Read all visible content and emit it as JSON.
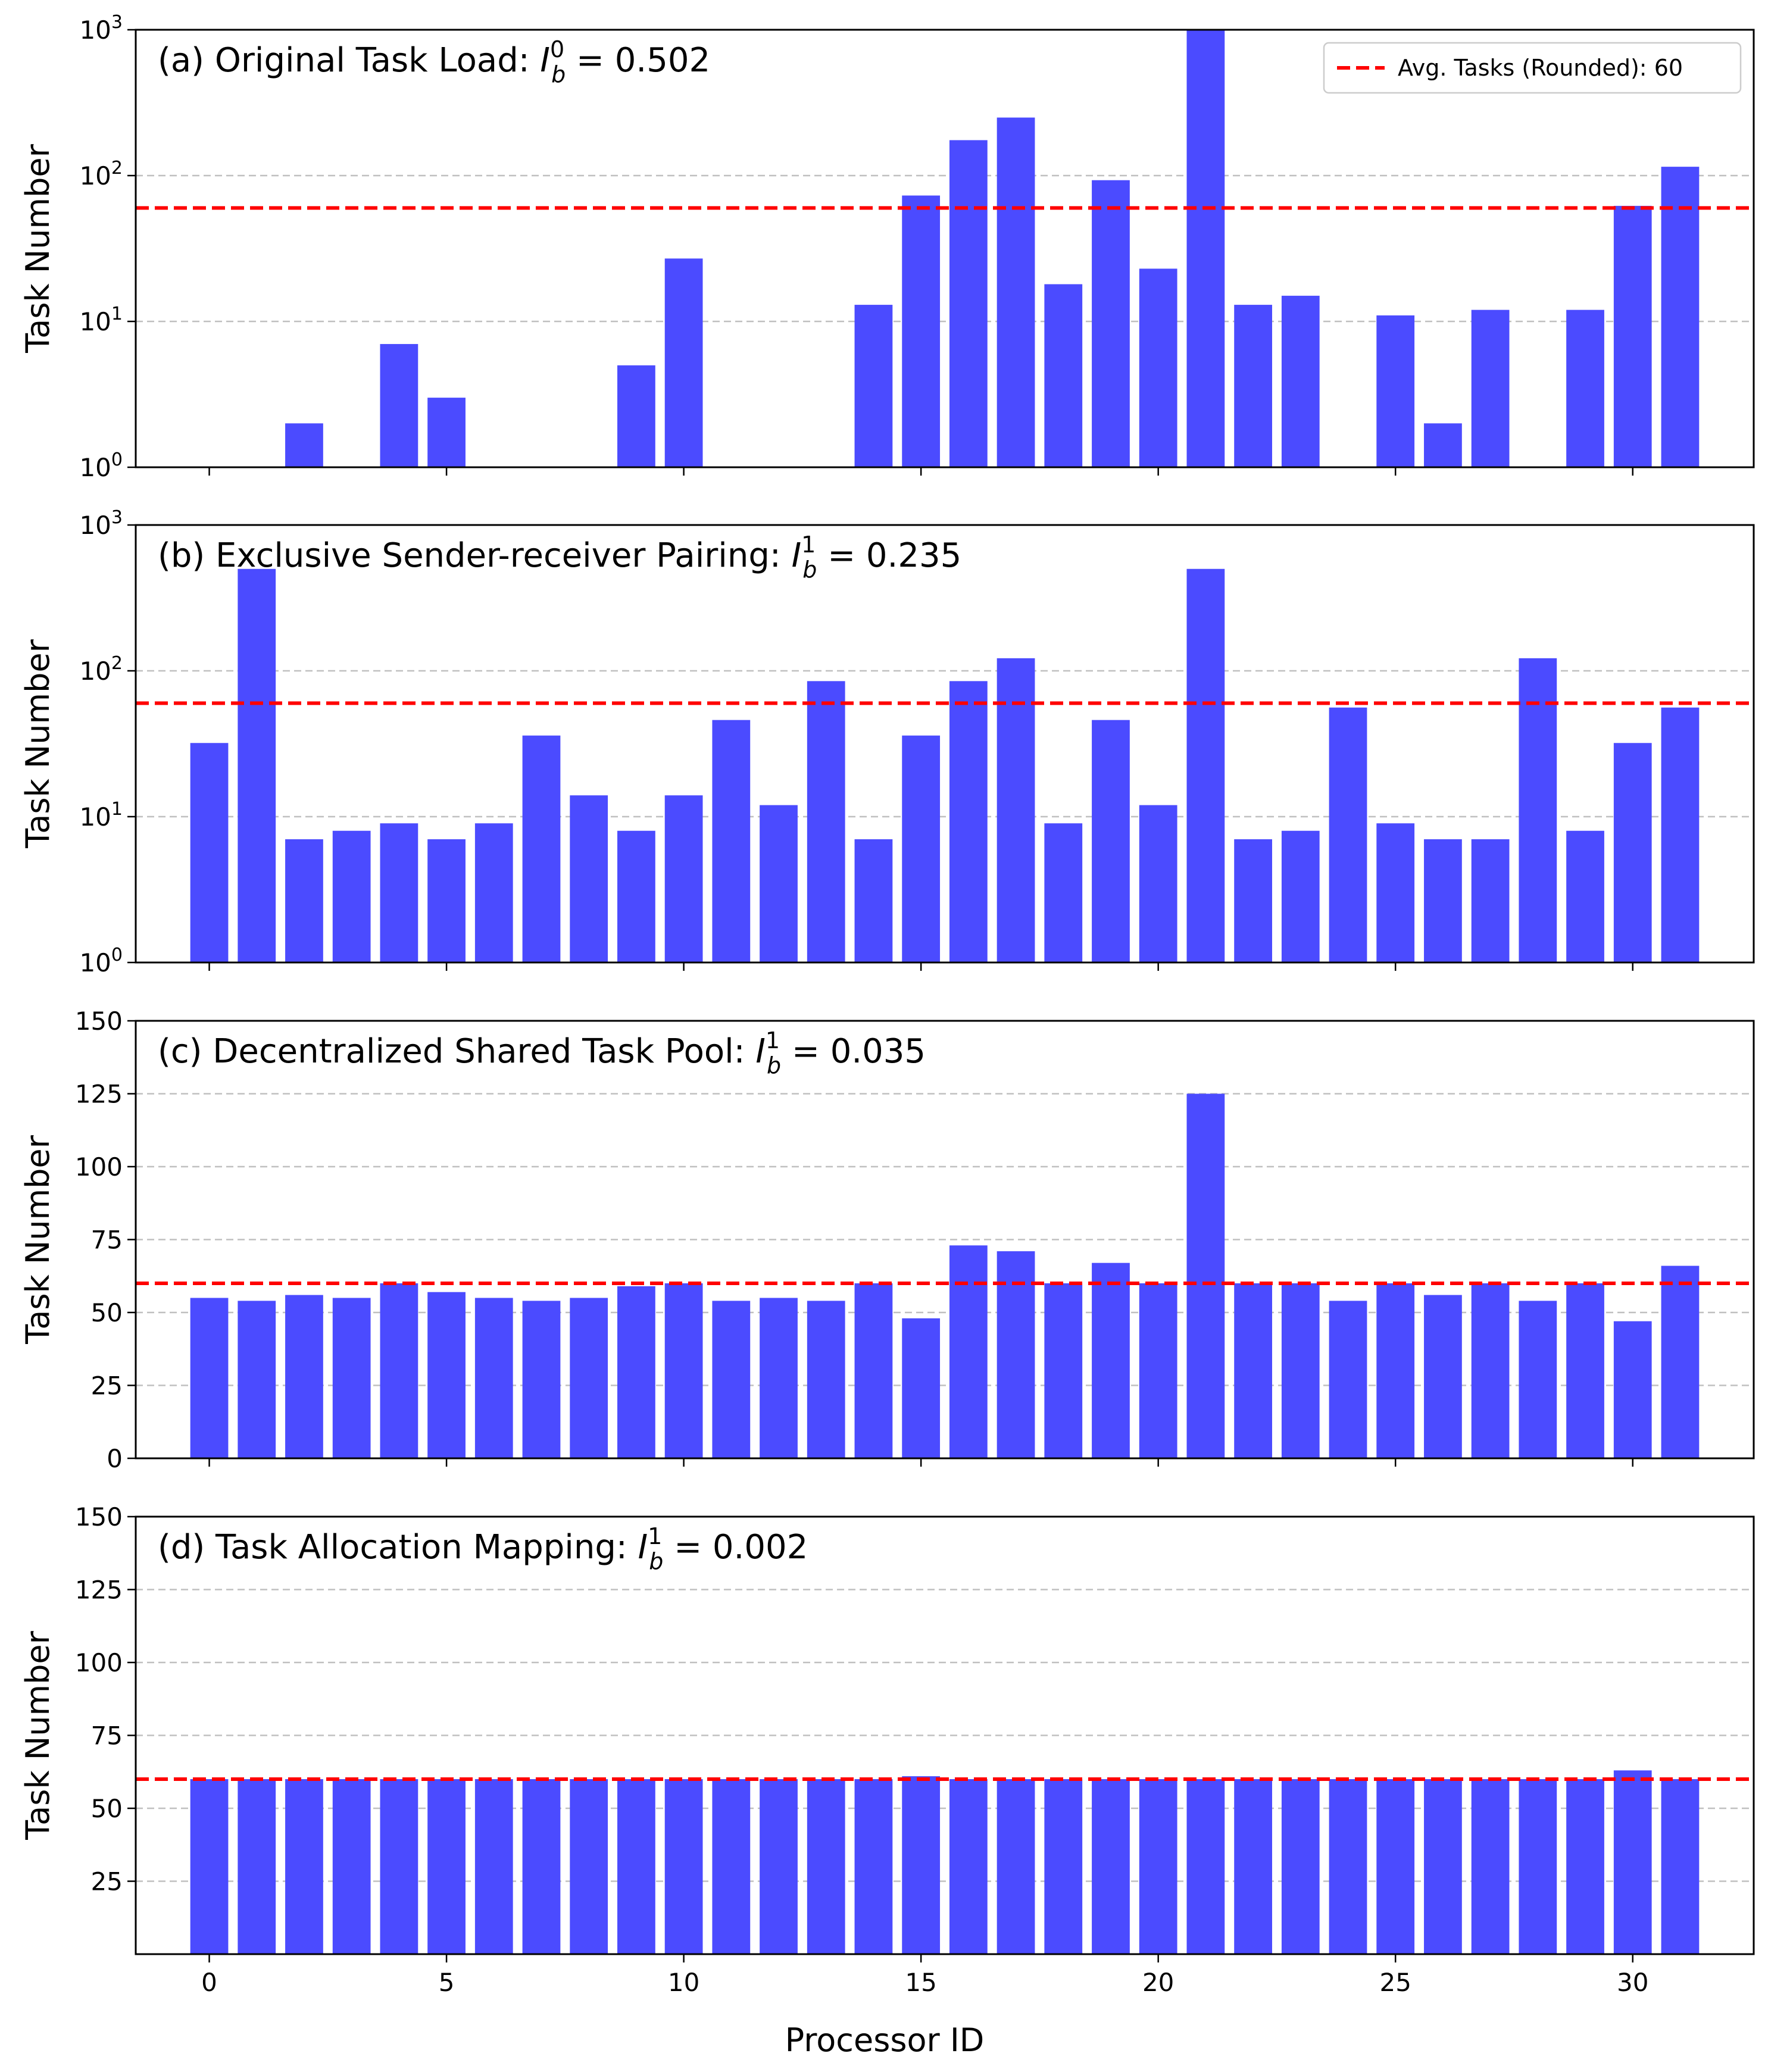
{
  "figure": {
    "xlabel": "Processor ID",
    "xticks": [
      0,
      5,
      10,
      15,
      20,
      25,
      30
    ]
  },
  "legend": {
    "label": "Avg. Tasks (Rounded): 60",
    "color": "#ff0000"
  },
  "colors": {
    "bar": "#4b4bff",
    "avg_line": "#ff0000",
    "grid": "#c0c0c0"
  },
  "chart_data": [
    {
      "type": "bar",
      "id": "a",
      "title_prefix": "(a) Original Task Load: ",
      "title_math": {
        "symbol": "I",
        "sub": "b",
        "sup": "0",
        "value": "0.502"
      },
      "ylabel": "Task Number",
      "yscale": "log",
      "ylim": [
        1,
        1000
      ],
      "yticks": [
        {
          "base": "10",
          "exp": "0"
        },
        {
          "base": "10",
          "exp": "1"
        },
        {
          "base": "10",
          "exp": "2"
        },
        {
          "base": "10",
          "exp": "3"
        }
      ],
      "grid": "y-dashed",
      "avg_line": 60,
      "legend_position": "top-right",
      "x": [
        0,
        1,
        2,
        3,
        4,
        5,
        6,
        7,
        8,
        9,
        10,
        11,
        12,
        13,
        14,
        15,
        16,
        17,
        18,
        19,
        20,
        21,
        22,
        23,
        24,
        25,
        26,
        27,
        28,
        29,
        30,
        31
      ],
      "values": [
        0,
        0,
        2,
        0,
        7,
        3,
        0,
        0,
        0,
        5,
        27,
        0,
        0,
        0,
        13,
        73,
        175,
        250,
        18,
        93,
        23,
        1000,
        13,
        15,
        0,
        11,
        2,
        12,
        0,
        12,
        62,
        115
      ]
    },
    {
      "type": "bar",
      "id": "b",
      "title_prefix": "(b) Exclusive Sender-receiver Pairing: ",
      "title_math": {
        "symbol": "I",
        "sub": "b",
        "sup": "1",
        "value": "0.235"
      },
      "ylabel": "Task Number",
      "yscale": "log",
      "ylim": [
        1,
        1000
      ],
      "yticks": [
        {
          "base": "10",
          "exp": "0"
        },
        {
          "base": "10",
          "exp": "1"
        },
        {
          "base": "10",
          "exp": "2"
        },
        {
          "base": "10",
          "exp": "3"
        }
      ],
      "grid": "y-dashed",
      "avg_line": 60,
      "x": [
        0,
        1,
        2,
        3,
        4,
        5,
        6,
        7,
        8,
        9,
        10,
        11,
        12,
        13,
        14,
        15,
        16,
        17,
        18,
        19,
        20,
        21,
        22,
        23,
        24,
        25,
        26,
        27,
        28,
        29,
        30,
        31
      ],
      "values": [
        32,
        500,
        7,
        8,
        9,
        7,
        9,
        36,
        14,
        8,
        14,
        46,
        12,
        85,
        7,
        36,
        85,
        122,
        9,
        46,
        12,
        500,
        7,
        8,
        56,
        9,
        7,
        7,
        122,
        8,
        32,
        56
      ]
    },
    {
      "type": "bar",
      "id": "c",
      "title_prefix": "(c) Decentralized Shared Task Pool: ",
      "title_math": {
        "symbol": "I",
        "sub": "b",
        "sup": "1",
        "value": "0.035"
      },
      "ylabel": "Task Number",
      "yscale": "linear",
      "ylim": [
        0,
        150
      ],
      "yticks": [
        "0",
        "25",
        "50",
        "75",
        "100",
        "125",
        "150"
      ],
      "grid": "y-dashed",
      "avg_line": 60,
      "x": [
        0,
        1,
        2,
        3,
        4,
        5,
        6,
        7,
        8,
        9,
        10,
        11,
        12,
        13,
        14,
        15,
        16,
        17,
        18,
        19,
        20,
        21,
        22,
        23,
        24,
        25,
        26,
        27,
        28,
        29,
        30,
        31
      ],
      "values": [
        55,
        54,
        56,
        55,
        60,
        57,
        55,
        54,
        55,
        59,
        60,
        54,
        55,
        54,
        60,
        48,
        73,
        71,
        60,
        67,
        60,
        125,
        60,
        60,
        54,
        60,
        56,
        60,
        54,
        60,
        47,
        66
      ]
    },
    {
      "type": "bar",
      "id": "d",
      "title_prefix": "(d) Task Allocation Mapping: ",
      "title_math": {
        "symbol": "I",
        "sub": "b",
        "sup": "1",
        "value": "0.002"
      },
      "ylabel": "Task Number",
      "yscale": "linear",
      "ylim": [
        0,
        150
      ],
      "yticks": [
        "25",
        "50",
        "75",
        "100",
        "125",
        "150"
      ],
      "grid": "y-dashed",
      "avg_line": 60,
      "x": [
        0,
        1,
        2,
        3,
        4,
        5,
        6,
        7,
        8,
        9,
        10,
        11,
        12,
        13,
        14,
        15,
        16,
        17,
        18,
        19,
        20,
        21,
        22,
        23,
        24,
        25,
        26,
        27,
        28,
        29,
        30,
        31
      ],
      "values": [
        60,
        60,
        60,
        60,
        60,
        60,
        60,
        60,
        60,
        60,
        60,
        60,
        60,
        60,
        60,
        61,
        60,
        60,
        60,
        60,
        60,
        60,
        60,
        60,
        60,
        60,
        60,
        60,
        60,
        60,
        63,
        60
      ]
    }
  ]
}
